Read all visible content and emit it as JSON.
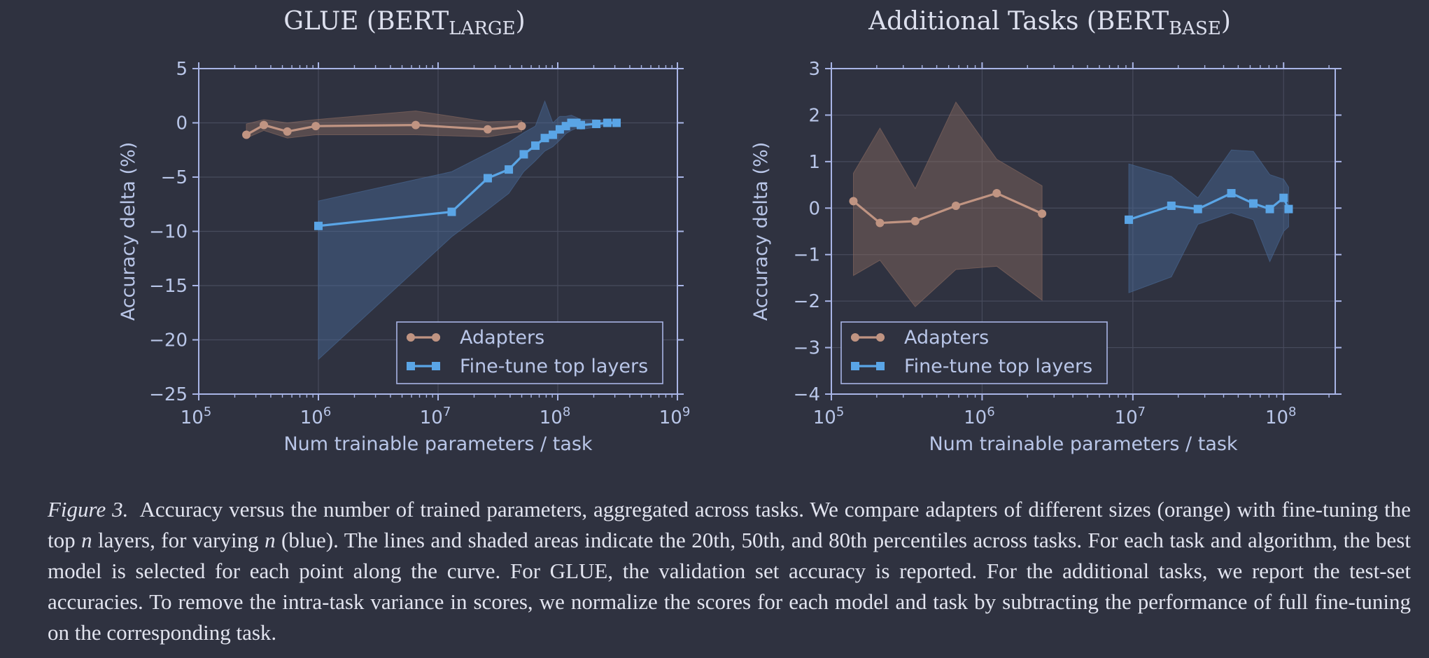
{
  "colors": {
    "background": "#2f3240",
    "axes": "#a9b5e6",
    "grid": "#474b5c",
    "adapters": "#c09482",
    "adapters_fill": "#8a6a60",
    "finetune": "#5aa5e6",
    "finetune_fill": "#4a6a98"
  },
  "chart_data": [
    {
      "type": "line",
      "title": {
        "main": "GLUE (BERT",
        "sub": "LARGE",
        "close": ")"
      },
      "xlabel": "Num trainable parameters / task",
      "ylabel": "Accuracy delta (%)",
      "x_scale": "log",
      "xlim": [
        100000,
        1000000000
      ],
      "ylim": [
        -25,
        5
      ],
      "xticks": [
        100000,
        1000000,
        10000000,
        100000000,
        1000000000
      ],
      "xtick_labels": [
        {
          "b": "10",
          "e": "5"
        },
        {
          "b": "10",
          "e": "6"
        },
        {
          "b": "10",
          "e": "7"
        },
        {
          "b": "10",
          "e": "8"
        },
        {
          "b": "10",
          "e": "9"
        }
      ],
      "yticks": [
        5,
        0,
        -5,
        -10,
        -15,
        -20,
        -25
      ],
      "ytick_labels": [
        "5",
        "0",
        "−5",
        "−10",
        "−15",
        "−20",
        "−25"
      ],
      "grid": true,
      "legend": "lower-right",
      "series": [
        {
          "name": "Adapters",
          "marker": "circle",
          "x": [
            250000,
            350000,
            550000,
            950000,
            6500000,
            26000000,
            50000000
          ],
          "y": [
            -1.1,
            -0.2,
            -0.8,
            -0.3,
            -0.2,
            -0.6,
            -0.3
          ],
          "lower": [
            -1.4,
            -0.7,
            -1.4,
            -1.1,
            -1.1,
            -1.3,
            -0.8
          ],
          "upper": [
            -0.1,
            0.3,
            0.0,
            0.3,
            1.1,
            0.1,
            0.2
          ]
        },
        {
          "name": "Fine-tune top layers",
          "marker": "square",
          "x": [
            1000000,
            13000000,
            26000000,
            39000000,
            52000000,
            65000000,
            78000000,
            91000000,
            104000000,
            117000000,
            130000000,
            143000000,
            156000000,
            210000000,
            260000000,
            310000000
          ],
          "y": [
            -9.5,
            -8.2,
            -5.1,
            -4.3,
            -2.9,
            -2.1,
            -1.4,
            -1.1,
            -0.6,
            -0.3,
            0.0,
            0.0,
            -0.2,
            -0.1,
            0.0,
            0.0
          ],
          "lower": [
            -21.8,
            -10.5,
            -8.0,
            -6.5,
            -4.5,
            -3.5,
            -2.6,
            -2.2,
            -1.6,
            -1.0,
            -0.7,
            -0.5,
            -0.6,
            -0.4,
            -0.2,
            -0.1
          ],
          "upper": [
            -7.2,
            -4.5,
            -2.8,
            -1.8,
            -0.9,
            -0.3,
            2.0,
            0.0,
            0.6,
            0.6,
            0.7,
            0.5,
            0.3,
            0.3,
            0.2,
            0.1
          ]
        }
      ]
    },
    {
      "type": "line",
      "title": {
        "main": "Additional Tasks (BERT",
        "sub": "BASE",
        "close": ")"
      },
      "xlabel": "Num trainable parameters / task",
      "ylabel": "Accuracy delta (%)",
      "x_scale": "log",
      "xlim": [
        100000,
        220000000
      ],
      "ylim": [
        -4,
        3
      ],
      "xticks": [
        100000,
        1000000,
        10000000,
        100000000
      ],
      "xtick_labels": [
        {
          "b": "10",
          "e": "5"
        },
        {
          "b": "10",
          "e": "6"
        },
        {
          "b": "10",
          "e": "7"
        },
        {
          "b": "10",
          "e": "8"
        }
      ],
      "yticks": [
        3,
        2,
        1,
        0,
        -1,
        -2,
        -3,
        -4
      ],
      "ytick_labels": [
        "3",
        "2",
        "1",
        "0",
        "−1",
        "−2",
        "−3",
        "−4"
      ],
      "grid": true,
      "legend": "lower-left",
      "series": [
        {
          "name": "Adapters",
          "marker": "circle",
          "x": [
            140000,
            210000,
            360000,
            670000,
            1250000,
            2500000
          ],
          "y": [
            0.15,
            -0.32,
            -0.28,
            0.05,
            0.32,
            -0.12
          ],
          "lower": [
            -1.45,
            -1.12,
            -2.12,
            -1.32,
            -1.25,
            -1.98
          ],
          "upper": [
            0.75,
            1.72,
            0.42,
            2.28,
            1.05,
            0.48
          ]
        },
        {
          "name": "Fine-tune top layers",
          "marker": "square",
          "x": [
            9400000,
            18000000,
            27000000,
            45000000,
            63000000,
            81000000,
            100000000,
            108000000
          ],
          "y": [
            -0.25,
            0.05,
            -0.02,
            0.32,
            0.1,
            -0.02,
            0.22,
            -0.02
          ],
          "lower": [
            -1.82,
            -1.48,
            -0.35,
            -0.1,
            -0.25,
            -1.15,
            -0.5,
            -0.4
          ],
          "upper": [
            0.95,
            0.68,
            0.22,
            1.25,
            1.22,
            0.72,
            0.62,
            0.45
          ]
        }
      ]
    }
  ],
  "caption": {
    "label": "Figure 3.",
    "parts": [
      "Accuracy versus the number of trained parameters, aggregated across tasks. We compare adapters of different sizes (orange) with fine-tuning the top ",
      "n",
      " layers, for varying ",
      "n",
      " (blue). The lines and shaded areas indicate the 20th, 50th, and 80th percentiles across tasks. For each task and algorithm, the best model is selected for each point along the curve. For GLUE, the validation set accuracy is reported. For the additional tasks, we report the test-set accuracies. To remove the intra-task variance in scores, we normalize the scores for each model and task by subtracting the performance of full fine-tuning on the corresponding task."
    ]
  }
}
